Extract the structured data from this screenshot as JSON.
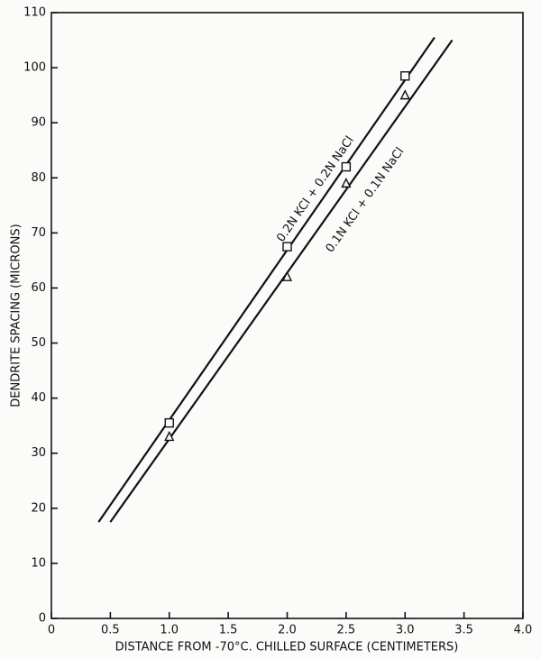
{
  "chart_data": {
    "type": "scatter",
    "xlabel": "DISTANCE FROM -70°C. CHILLED SURFACE (CENTIMETERS)",
    "ylabel": "DENDRITE SPACING (MICRONS)",
    "xlim": [
      0,
      4.0
    ],
    "ylim": [
      0,
      110
    ],
    "xticks": [
      0,
      0.5,
      {
        "value": 1,
        "label": "1.0"
      },
      1.5,
      {
        "value": 2,
        "label": "2.0"
      },
      2.5,
      {
        "value": 3,
        "label": "3.0"
      },
      3.5,
      {
        "value": 4,
        "label": "4.0"
      }
    ],
    "yticks": [
      0,
      10,
      20,
      30,
      40,
      50,
      60,
      70,
      80,
      90,
      100,
      110
    ],
    "series": [
      {
        "name": "0.2N KCl + 0.2N NaCl",
        "color": "#111111",
        "marker": "square",
        "x": [
          1.0,
          2.0,
          2.5,
          3.0
        ],
        "values": [
          35.5,
          67.5,
          82,
          98.5
        ],
        "fit_x": [
          0.4,
          3.25
        ],
        "fit_values": [
          17.5,
          105.5
        ]
      },
      {
        "name": "0.1N KCl + 0.1N NaCl",
        "color": "#111111",
        "marker": "triangle",
        "x": [
          1.0,
          2.0,
          2.5,
          3.0
        ],
        "values": [
          33,
          62,
          79,
          95
        ],
        "fit_x": [
          0.5,
          3.4
        ],
        "fit_values": [
          17.5,
          105
        ]
      }
    ]
  }
}
